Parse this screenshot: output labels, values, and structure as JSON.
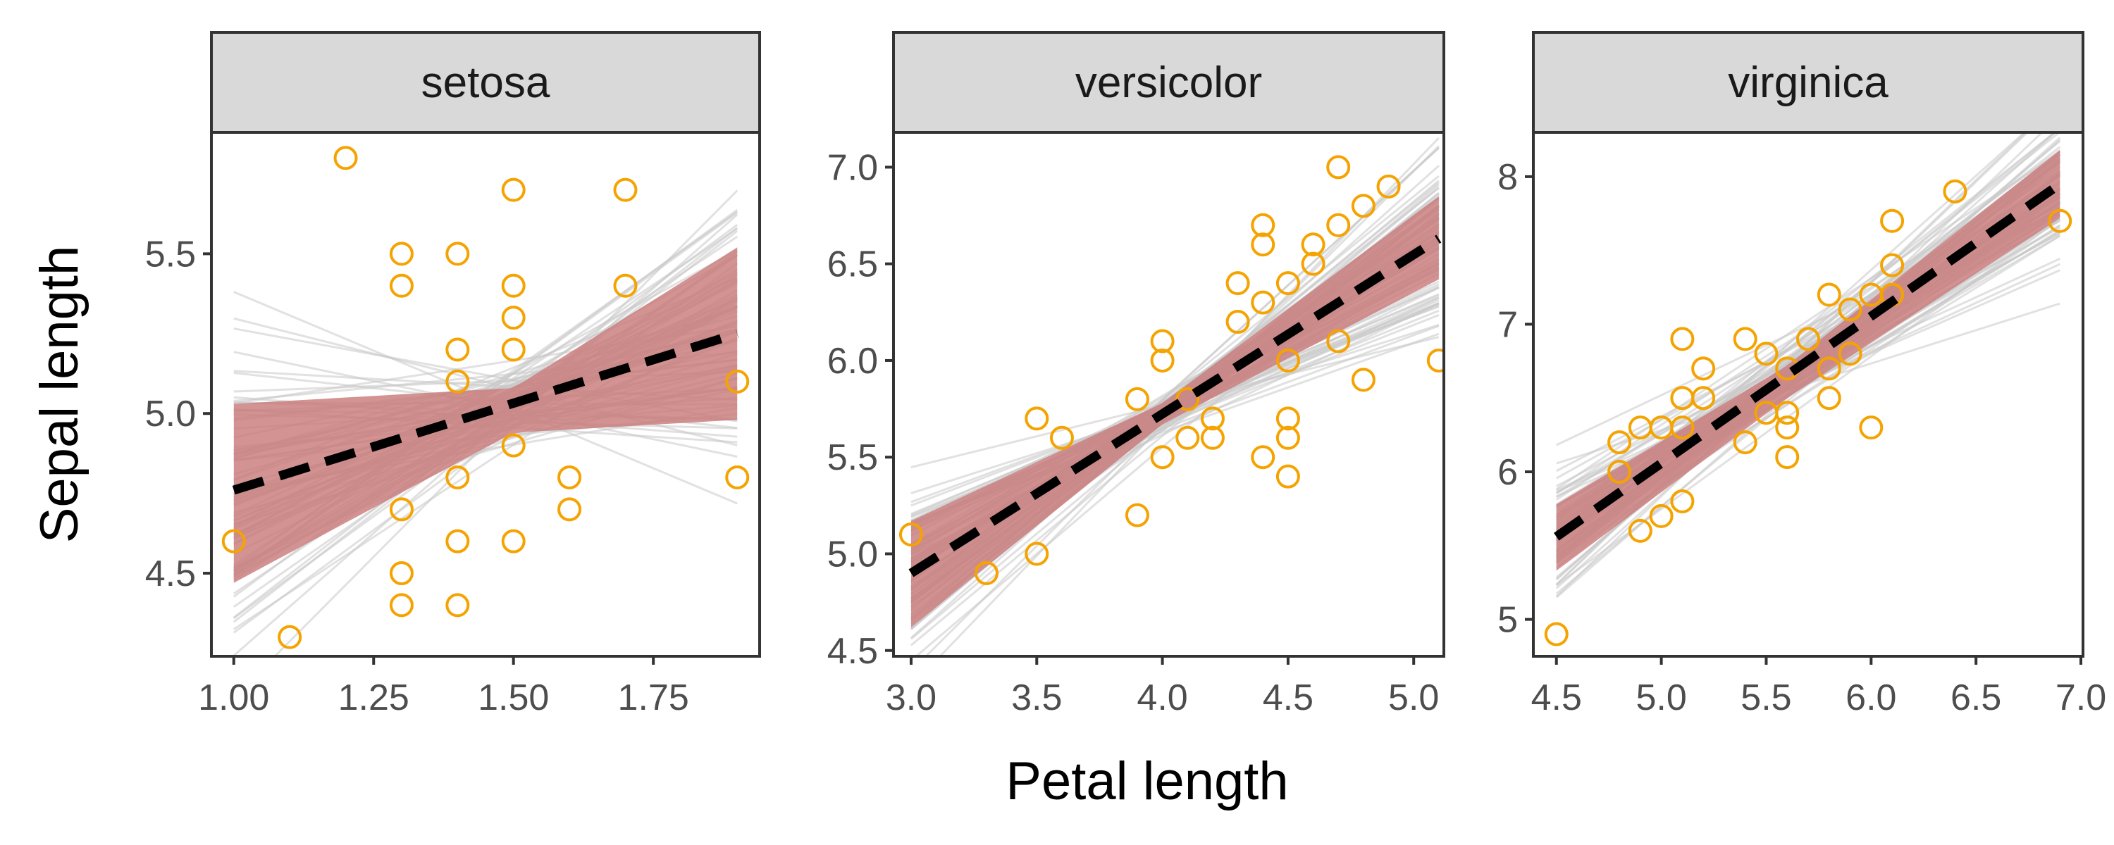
{
  "chart_data": {
    "type": "scatter",
    "xlabel": "Petal length",
    "ylabel": "Sepal length",
    "grid": false,
    "legend": "none",
    "colors": {
      "points": "#f5a300",
      "fit_line": "#000000",
      "posterior_lines": "#c8c8c8",
      "ribbon": "#c97b7b",
      "strip_fill": "#d9d9d9",
      "panel_border": "#333333"
    },
    "panels": [
      {
        "name": "setosa",
        "xlim": [
          0.96,
          1.94
        ],
        "ylim": [
          4.24,
          5.88
        ],
        "xticks": [
          1.0,
          1.25,
          1.5,
          1.75
        ],
        "xtick_labels": [
          "1.00",
          "1.25",
          "1.50",
          "1.75"
        ],
        "yticks": [
          4.5,
          5.0,
          5.5
        ],
        "ytick_labels": [
          "4.5",
          "5.0",
          "5.5"
        ],
        "fit": {
          "x": [
            1.0,
            1.9
          ],
          "y": [
            4.76,
            5.25
          ]
        },
        "ribbon": {
          "x": [
            1.0,
            1.5,
            1.9
          ],
          "lower": [
            4.47,
            4.94,
            4.98
          ],
          "upper": [
            5.03,
            5.08,
            5.52
          ]
        },
        "points": [
          [
            1.0,
            4.6
          ],
          [
            1.1,
            4.3
          ],
          [
            1.2,
            5.8
          ],
          [
            1.3,
            5.5
          ],
          [
            1.3,
            5.4
          ],
          [
            1.3,
            4.7
          ],
          [
            1.3,
            4.5
          ],
          [
            1.3,
            4.4
          ],
          [
            1.4,
            5.5
          ],
          [
            1.4,
            5.2
          ],
          [
            1.4,
            5.1
          ],
          [
            1.4,
            4.8
          ],
          [
            1.4,
            4.6
          ],
          [
            1.4,
            4.4
          ],
          [
            1.5,
            5.7
          ],
          [
            1.5,
            5.4
          ],
          [
            1.5,
            5.3
          ],
          [
            1.5,
            5.2
          ],
          [
            1.5,
            4.9
          ],
          [
            1.5,
            4.6
          ],
          [
            1.6,
            4.8
          ],
          [
            1.6,
            4.7
          ],
          [
            1.7,
            5.7
          ],
          [
            1.7,
            5.4
          ],
          [
            1.9,
            5.1
          ],
          [
            1.9,
            4.8
          ]
        ]
      },
      {
        "name": "versicolor",
        "xlim": [
          2.93,
          5.12
        ],
        "ylim": [
          4.47,
          7.18
        ],
        "xticks": [
          3.0,
          3.5,
          4.0,
          4.5,
          5.0
        ],
        "xtick_labels": [
          "3.0",
          "3.5",
          "4.0",
          "4.5",
          "5.0"
        ],
        "yticks": [
          4.5,
          5.0,
          5.5,
          6.0,
          6.5,
          7.0
        ],
        "ytick_labels": [
          "4.5",
          "5.0",
          "5.5",
          "6.0",
          "6.5",
          "7.0"
        ],
        "fit": {
          "x": [
            3.0,
            5.1
          ],
          "y": [
            4.9,
            6.63
          ]
        },
        "ribbon": {
          "x": [
            3.0,
            4.0,
            5.1
          ],
          "lower": [
            4.62,
            5.67,
            6.42
          ],
          "upper": [
            5.17,
            5.78,
            6.85
          ]
        },
        "points": [
          [
            3.0,
            5.1
          ],
          [
            3.3,
            4.9
          ],
          [
            3.5,
            5.7
          ],
          [
            3.5,
            5.0
          ],
          [
            3.6,
            5.6
          ],
          [
            3.9,
            5.8
          ],
          [
            3.9,
            5.2
          ],
          [
            4.0,
            6.1
          ],
          [
            4.0,
            6.0
          ],
          [
            4.0,
            5.5
          ],
          [
            4.1,
            5.8
          ],
          [
            4.1,
            5.6
          ],
          [
            4.2,
            5.7
          ],
          [
            4.2,
            5.6
          ],
          [
            4.3,
            6.4
          ],
          [
            4.3,
            6.2
          ],
          [
            4.4,
            6.7
          ],
          [
            4.4,
            6.6
          ],
          [
            4.4,
            6.3
          ],
          [
            4.4,
            5.5
          ],
          [
            4.5,
            6.4
          ],
          [
            4.5,
            6.0
          ],
          [
            4.5,
            5.7
          ],
          [
            4.5,
            5.6
          ],
          [
            4.5,
            5.4
          ],
          [
            4.6,
            6.6
          ],
          [
            4.6,
            6.5
          ],
          [
            4.7,
            7.0
          ],
          [
            4.7,
            6.7
          ],
          [
            4.7,
            6.1
          ],
          [
            4.8,
            6.8
          ],
          [
            4.8,
            5.9
          ],
          [
            4.9,
            6.9
          ],
          [
            5.1,
            6.0
          ]
        ]
      },
      {
        "name": "virginica",
        "xlim": [
          4.39,
          7.01
        ],
        "ylim": [
          4.75,
          8.3
        ],
        "xticks": [
          4.5,
          5.0,
          5.5,
          6.0,
          6.5,
          7.0
        ],
        "xtick_labels": [
          "4.5",
          "5.0",
          "5.5",
          "6.0",
          "6.5",
          "7.0"
        ],
        "yticks": [
          5,
          6,
          7,
          8
        ],
        "ytick_labels": [
          "5",
          "6",
          "7",
          "8"
        ],
        "fit": {
          "x": [
            4.5,
            6.9
          ],
          "y": [
            5.56,
            7.95
          ]
        },
        "ribbon": {
          "x": [
            4.5,
            5.6,
            6.9
          ],
          "lower": [
            5.33,
            6.5,
            7.72
          ],
          "upper": [
            5.78,
            6.72,
            8.18
          ]
        },
        "points": [
          [
            4.5,
            4.9
          ],
          [
            4.8,
            6.2
          ],
          [
            4.8,
            6.0
          ],
          [
            4.9,
            6.3
          ],
          [
            4.9,
            5.6
          ],
          [
            5.0,
            6.3
          ],
          [
            5.0,
            5.7
          ],
          [
            5.1,
            6.9
          ],
          [
            5.1,
            6.5
          ],
          [
            5.1,
            6.3
          ],
          [
            5.1,
            5.8
          ],
          [
            5.2,
            6.7
          ],
          [
            5.2,
            6.5
          ],
          [
            5.4,
            6.9
          ],
          [
            5.4,
            6.2
          ],
          [
            5.5,
            6.8
          ],
          [
            5.5,
            6.4
          ],
          [
            5.6,
            6.7
          ],
          [
            5.6,
            6.4
          ],
          [
            5.6,
            6.3
          ],
          [
            5.6,
            6.1
          ],
          [
            5.7,
            6.9
          ],
          [
            5.8,
            7.2
          ],
          [
            5.8,
            6.7
          ],
          [
            5.8,
            6.5
          ],
          [
            5.9,
            7.1
          ],
          [
            5.9,
            6.8
          ],
          [
            6.0,
            7.2
          ],
          [
            6.0,
            6.3
          ],
          [
            6.1,
            7.7
          ],
          [
            6.1,
            7.4
          ],
          [
            6.1,
            7.2
          ],
          [
            6.4,
            7.9
          ],
          [
            6.9,
            7.7
          ]
        ]
      }
    ]
  }
}
